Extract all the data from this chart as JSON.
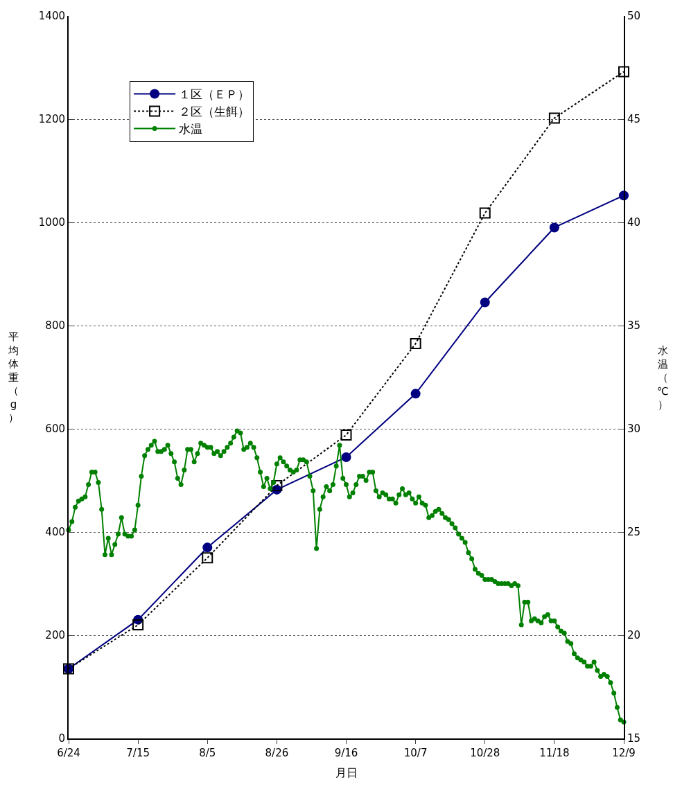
{
  "chart_data": {
    "type": "line",
    "xlabel": "月日",
    "ylabel": "平均体重（g）",
    "y2label": "水温（℃）",
    "xlim": [
      "--06-24",
      "--12-09"
    ],
    "xticks": [
      {
        "value": "--06-24",
        "label": "6/24"
      },
      {
        "value": "--07-15",
        "label": "7/15"
      },
      {
        "value": "--08-05",
        "label": "8/5"
      },
      {
        "value": "--08-26",
        "label": "8/26"
      },
      {
        "value": "--09-16",
        "label": "9/16"
      },
      {
        "value": "--10-07",
        "label": "10/7"
      },
      {
        "value": "--10-28",
        "label": "10/28"
      },
      {
        "value": "--11-18",
        "label": "11/18"
      },
      {
        "value": "--12-09",
        "label": "12/9"
      }
    ],
    "ylim": [
      0,
      1400
    ],
    "yticks": [
      0,
      200,
      400,
      600,
      800,
      1000,
      1200,
      1400
    ],
    "y2lim": [
      15,
      50
    ],
    "y2ticks": [
      15,
      20,
      25,
      30,
      35,
      40,
      45,
      50
    ],
    "grid": "y",
    "legend": "top left",
    "x": [
      "--06-24",
      "--07-15",
      "--08-05",
      "--08-26",
      "--09-16",
      "--10-07",
      "--10-28",
      "--11-18",
      "--12-09"
    ],
    "series": [
      {
        "name": "１区（ＥＰ）",
        "color": "#000080",
        "marker": "circle",
        "line_style": "solid",
        "values": [
          135,
          230,
          370,
          482,
          545,
          668,
          845,
          990,
          1052
        ]
      },
      {
        "name": "２区（生餌）",
        "color": "#000000",
        "marker": "square",
        "line_style": "dotted",
        "values": [
          135,
          220,
          350,
          490,
          588,
          765,
          1018,
          1202,
          1292
        ]
      },
      {
        "name": "水温",
        "color": "#008000",
        "marker": "circle",
        "line_style": "solid",
        "axis": "y2",
        "x": [
          "--06-24",
          "--06-25",
          "--06-26",
          "--06-27",
          "--06-28",
          "--06-29",
          "--06-30",
          "--07-01",
          "--07-02",
          "--07-03",
          "--07-04",
          "--07-05",
          "--07-06",
          "--07-07",
          "--07-08",
          "--07-09",
          "--07-10",
          "--07-11",
          "--07-12",
          "--07-13",
          "--07-14",
          "--07-15",
          "--07-16",
          "--07-17",
          "--07-18",
          "--07-19",
          "--07-20",
          "--07-21",
          "--07-22",
          "--07-23",
          "--07-24",
          "--07-25",
          "--07-26",
          "--07-27",
          "--07-28",
          "--07-29",
          "--07-30",
          "--07-31",
          "--08-01",
          "--08-02",
          "--08-03",
          "--08-04",
          "--08-05",
          "--08-06",
          "--08-07",
          "--08-08",
          "--08-09",
          "--08-10",
          "--08-11",
          "--08-12",
          "--08-13",
          "--08-14",
          "--08-15",
          "--08-16",
          "--08-17",
          "--08-18",
          "--08-19",
          "--08-20",
          "--08-21",
          "--08-22",
          "--08-23",
          "--08-24",
          "--08-25",
          "--08-26",
          "--08-27",
          "--08-28",
          "--08-29",
          "--08-30",
          "--08-31",
          "--09-01",
          "--09-02",
          "--09-03",
          "--09-04",
          "--09-05",
          "--09-06",
          "--09-07",
          "--09-08",
          "--09-09",
          "--09-10",
          "--09-11",
          "--09-12",
          "--09-13",
          "--09-14",
          "--09-15",
          "--09-16",
          "--09-17",
          "--09-18",
          "--09-19",
          "--09-20",
          "--09-21",
          "--09-22",
          "--09-23",
          "--09-24",
          "--09-25",
          "--09-26",
          "--09-27",
          "--09-28",
          "--09-29",
          "--09-30",
          "--10-01",
          "--10-02",
          "--10-03",
          "--10-04",
          "--10-05",
          "--10-06",
          "--10-07",
          "--10-08",
          "--10-09",
          "--10-10",
          "--10-11",
          "--10-12",
          "--10-13",
          "--10-14",
          "--10-15",
          "--10-16",
          "--10-17",
          "--10-18",
          "--10-19",
          "--10-20",
          "--10-21",
          "--10-22",
          "--10-23",
          "--10-24",
          "--10-25",
          "--10-26",
          "--10-27",
          "--10-28",
          "--10-29",
          "--10-30",
          "--10-31",
          "--11-01",
          "--11-02",
          "--11-03",
          "--11-04",
          "--11-05",
          "--11-06",
          "--11-07",
          "--11-08",
          "--11-09",
          "--11-10",
          "--11-11",
          "--11-12",
          "--11-13",
          "--11-14",
          "--11-15",
          "--11-16",
          "--11-17",
          "--11-18",
          "--11-19",
          "--11-20",
          "--11-21",
          "--11-22",
          "--11-23",
          "--11-24",
          "--11-25",
          "--11-26",
          "--11-27",
          "--11-28",
          "--11-29",
          "--11-30",
          "--12-01",
          "--12-02",
          "--12-03",
          "--12-04",
          "--12-05",
          "--12-06",
          "--12-07",
          "--12-08",
          "--12-09"
        ],
        "values": [
          25.1,
          25.5,
          26.2,
          26.5,
          26.6,
          26.7,
          27.3,
          27.9,
          27.9,
          27.4,
          26.1,
          23.9,
          24.7,
          23.9,
          24.4,
          24.9,
          25.7,
          24.9,
          24.8,
          24.8,
          25.1,
          26.3,
          27.7,
          28.7,
          29.0,
          29.2,
          29.4,
          28.9,
          28.9,
          29.0,
          29.2,
          28.8,
          28.4,
          27.6,
          27.3,
          28.0,
          29.0,
          29.0,
          28.4,
          28.8,
          29.3,
          29.2,
          29.1,
          29.1,
          28.8,
          28.9,
          28.7,
          28.9,
          29.1,
          29.3,
          29.6,
          29.9,
          29.8,
          29.0,
          29.1,
          29.3,
          29.1,
          28.6,
          27.9,
          27.2,
          27.6,
          27.1,
          27.4,
          28.3,
          28.6,
          28.4,
          28.2,
          28.0,
          27.9,
          28.0,
          28.5,
          28.5,
          28.4,
          27.7,
          27.0,
          24.2,
          26.1,
          26.7,
          27.2,
          27.0,
          27.3,
          28.2,
          29.2,
          27.6,
          27.3,
          26.7,
          26.9,
          27.3,
          27.7,
          27.7,
          27.5,
          27.9,
          27.9,
          27.0,
          26.7,
          26.9,
          26.8,
          26.6,
          26.6,
          26.4,
          26.8,
          27.1,
          26.8,
          26.9,
          26.6,
          26.4,
          26.7,
          26.4,
          26.3,
          25.7,
          25.8,
          26.0,
          26.1,
          25.9,
          25.7,
          25.6,
          25.4,
          25.2,
          24.9,
          24.7,
          24.5,
          24.0,
          23.7,
          23.2,
          23.0,
          22.9,
          22.7,
          22.7,
          22.7,
          22.6,
          22.5,
          22.5,
          22.5,
          22.5,
          22.4,
          22.5,
          22.4,
          20.5,
          21.6,
          21.6,
          20.7,
          20.8,
          20.7,
          20.6,
          20.9,
          21.0,
          20.7,
          20.7,
          20.4,
          20.2,
          20.1,
          19.7,
          19.6,
          19.1,
          18.9,
          18.8,
          18.7,
          18.5,
          18.5,
          18.7,
          18.3,
          18.0,
          18.1,
          18.0,
          17.7,
          17.2,
          16.5,
          15.9,
          15.8
        ]
      }
    ]
  }
}
